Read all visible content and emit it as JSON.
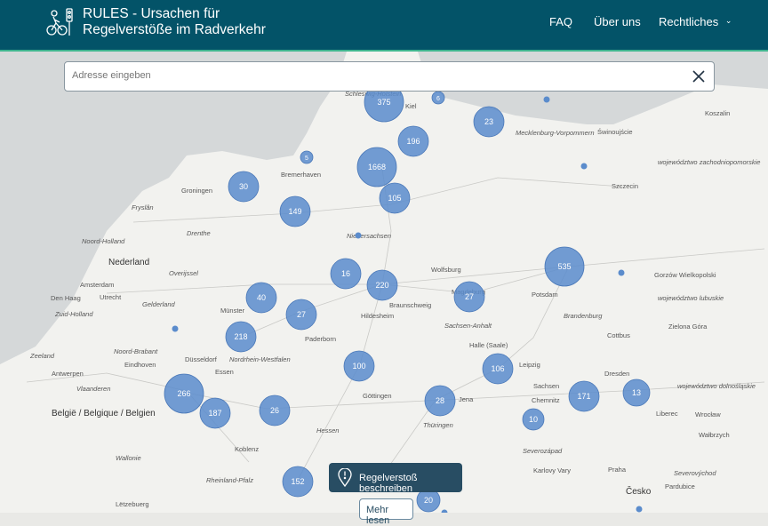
{
  "header": {
    "title_line1": "RULES - Ursachen für",
    "title_line2": "Regelverstöße im Radverkehr",
    "nav": [
      "FAQ",
      "Über uns",
      "Rechtliches"
    ],
    "bg": "#035368"
  },
  "search": {
    "placeholder": "Adresse eingeben",
    "value": ""
  },
  "actions": {
    "report": "Regelverstoß beschreiben",
    "more": "Mehr lesen"
  },
  "map": {
    "cluster_color": "#5b8ccc",
    "clusters": [
      "375",
      "6",
      "23",
      "196",
      "5",
      "1668",
      "30",
      "105",
      "149",
      "16",
      "220",
      "535",
      "40",
      "27",
      "27",
      "218",
      "100",
      "106",
      "266",
      "171",
      "13",
      "187",
      "26",
      "28",
      "10",
      "152",
      "20"
    ],
    "labels": [
      "Schleswig-Holstein",
      "Kiel",
      "Mecklenburg-Vorpommern",
      "Szczecin",
      "województwo zachodniopomorskie",
      "Koszalin",
      "Świnoujście",
      "Bremerhaven",
      "Groningen",
      "Fryslân",
      "Drenthe",
      "Noord-Holland",
      "Nederland",
      "Amsterdam",
      "Den Haag",
      "Utrecht",
      "Zuid-Holland",
      "Overijssel",
      "Gelderland",
      "Niedersachsen",
      "Wolfsburg",
      "Braunschweig",
      "Hildesheim",
      "Potsdam",
      "Brandenburg",
      "Sachsen-Anhalt",
      "Magdeburg",
      "Münster",
      "Nordrhein-Westfalen",
      "Paderborn",
      "Essen",
      "Düsseldorf",
      "Göttingen",
      "Halle (Saale)",
      "Leipzig",
      "Antwerpen",
      "Vlaanderen",
      "België / Belgique / Belgien",
      "Wallonie",
      "Zeeland",
      "Noord-Brabant",
      "Eindhoven",
      "Hessen",
      "Thüringen",
      "Jena",
      "Chemnitz",
      "Sachsen",
      "Dresden",
      "Liberec",
      "Wrocław",
      "województwo dolnośląskie",
      "województwo lubuskie",
      "Gorzów Wielkopolski",
      "Zielona Góra",
      "Cottbus",
      "Koblenz",
      "Rheinland-Pfalz",
      "Lëtzebuerg",
      "Severozápad",
      "Karlovy Vary",
      "Praha",
      "Severovýchod",
      "Pardubice",
      "Česko",
      "Wałbrzych"
    ]
  }
}
